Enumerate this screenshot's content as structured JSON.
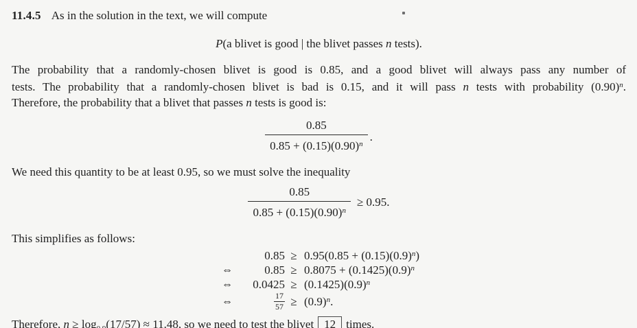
{
  "page": {
    "background": "#f6f6f4",
    "text_color": "#1f1f1f",
    "rule_color": "#2a2a2a"
  },
  "problem": {
    "number": "11.4.5",
    "intro": "As in the solution in the text, we will compute"
  },
  "display_probability": [
    {
      "t": "P",
      "s": "i"
    },
    {
      "t": "(a blivet is good | the blivet passes "
    },
    {
      "t": "n",
      "s": "i"
    },
    {
      "t": " tests)."
    }
  ],
  "paragraph1": {
    "line1": "The probability that a randomly-chosen blivet is good is 0.85, and a good blivet will always pass any number of",
    "line2": [
      {
        "t": "tests. The probability that a randomly-chosen blivet is bad is 0.15, and it will pass "
      },
      {
        "t": "n",
        "s": "i"
      },
      {
        "t": " tests with probability (0.90)"
      },
      {
        "t": "n",
        "s": "supi"
      },
      {
        "t": "."
      }
    ],
    "line3": [
      {
        "t": "Therefore, the probability that a blivet that passes "
      },
      {
        "t": "n",
        "s": "i"
      },
      {
        "t": " tests is good is:"
      }
    ]
  },
  "fraction1": {
    "numerator": "0.85",
    "denominator": [
      {
        "t": "0.85 + (0.15)(0.90)"
      },
      {
        "t": "n",
        "s": "supi"
      }
    ],
    "suffix": "."
  },
  "paragraph2": "We need this quantity to be at least 0.95, so we must solve the inequality",
  "fraction2": {
    "numerator": "0.85",
    "denominator": [
      {
        "t": "0.85 + (0.15)(0.90)"
      },
      {
        "t": "n",
        "s": "supi"
      }
    ],
    "relation": "≥",
    "rhs": "0.95."
  },
  "paragraph3": "This simplifies as follows:",
  "derivation": {
    "rows": [
      {
        "arrow": "",
        "lhs": [
          {
            "t": "0.85"
          }
        ],
        "rel": "≥",
        "rhs": [
          {
            "t": "0.95(0.85 + (0.15)(0.9)"
          },
          {
            "t": "n",
            "s": "supi"
          },
          {
            "t": ")"
          }
        ]
      },
      {
        "arrow": "⇔",
        "lhs": [
          {
            "t": "0.85"
          }
        ],
        "rel": "≥",
        "rhs": [
          {
            "t": "0.8075 + (0.1425)(0.9)"
          },
          {
            "t": "n",
            "s": "supi"
          }
        ]
      },
      {
        "arrow": "⇔",
        "lhs": [
          {
            "t": "0.0425"
          }
        ],
        "rel": "≥",
        "rhs": [
          {
            "t": "(0.1425)(0.9)"
          },
          {
            "t": "n",
            "s": "supi"
          }
        ]
      },
      {
        "arrow": "⇔",
        "lhs": [
          {
            "s": "frac",
            "num": "17",
            "den": "57"
          }
        ],
        "rel": "≥",
        "rhs": [
          {
            "t": "(0.9)"
          },
          {
            "t": "n",
            "s": "supi"
          },
          {
            "t": "."
          }
        ]
      }
    ]
  },
  "conclusion": [
    {
      "t": "Therefore, "
    },
    {
      "t": "n",
      "s": "i"
    },
    {
      "t": " ≥ log"
    },
    {
      "t": "0.9",
      "s": "sub"
    },
    {
      "t": "(17/57) ≈ 11.48, so we need to test the blivet"
    },
    {
      "t": "12",
      "s": "box"
    },
    {
      "t": "times."
    }
  ]
}
